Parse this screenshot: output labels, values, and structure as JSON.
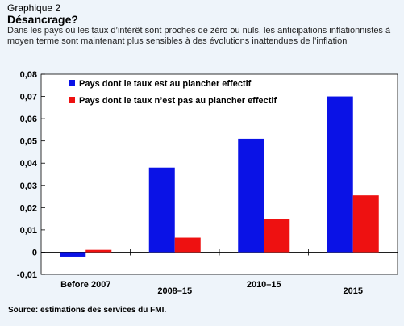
{
  "header": {
    "label": "Graphique 2",
    "title": "Désancrage?",
    "subtitle": "Dans les pays où les taux d’intérêt sont proches de zéro ou nuls, les anticipations inflationnistes à moyen terme sont maintenant plus sensibles à des évolutions inattendues de l’inflation"
  },
  "source": "Source: estimations des services du FMI.",
  "colors": {
    "series1": "#0a12e6",
    "series2": "#ee1111",
    "plot_bg": "#ffffff",
    "page_bg": "#eef4fa"
  },
  "chart_data": {
    "type": "bar",
    "title": "",
    "xlabel": "",
    "ylabel": "",
    "categories": [
      "Before 2007",
      "2008–15",
      "2010–15",
      "2015"
    ],
    "series": [
      {
        "name": "Pays dont le taux est au plancher effectif",
        "values": [
          -0.002,
          0.038,
          0.051,
          0.07
        ]
      },
      {
        "name": "Pays dont le taux n’est pas au plancher effectif",
        "values": [
          0.001,
          0.0065,
          0.015,
          0.0255
        ]
      }
    ],
    "ylim": [
      -0.01,
      0.08
    ],
    "yticks": [
      "-0,01",
      "0",
      "0,01",
      "0,02",
      "0,03",
      "0,04",
      "0,05",
      "0,06",
      "0,07",
      "0,08"
    ],
    "grid": false,
    "legend_position": "top-left"
  }
}
